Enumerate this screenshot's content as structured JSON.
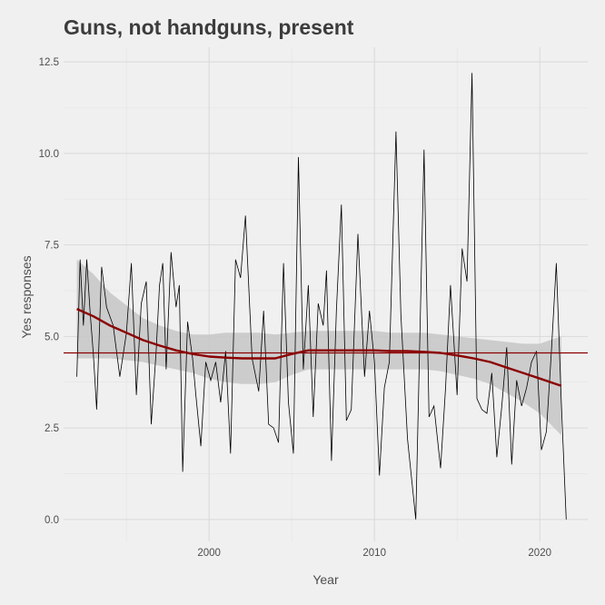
{
  "chart_data": {
    "type": "line",
    "title": "Guns, not handguns, present",
    "xlabel": "Year",
    "ylabel": "Yes responses",
    "xlim": [
      1991.2,
      2022.9
    ],
    "ylim": [
      -0.6,
      12.9
    ],
    "x_ticks": [
      2000,
      2010,
      2020
    ],
    "x_tick_labels": [
      "2000",
      "2010",
      "2020"
    ],
    "y_ticks": [
      0,
      2.5,
      5,
      7.5,
      10,
      12.5
    ],
    "y_tick_labels": [
      "0.0",
      "2.5",
      "5.0",
      "7.5",
      "10.0",
      "12.5"
    ],
    "grid": true,
    "legend": "none",
    "colors": {
      "background": "#f0f0f0",
      "grid": "#d9d9d9",
      "raw_line": "#000000",
      "smooth": "#8b0000",
      "band": "#c8c8c8",
      "mean_line": "#8b0000"
    },
    "mean_line_y": 4.55,
    "series": [
      {
        "x": [
          1992.0,
          1992.2,
          1992.4,
          1992.6,
          1992.8,
          1993.0,
          1993.2,
          1993.5,
          1993.8,
          1994.2,
          1994.6,
          1995.0,
          1995.3,
          1995.6,
          1995.9,
          1996.2,
          1996.5,
          1996.8,
          1997.0,
          1997.2,
          1997.4,
          1997.7,
          1998.0,
          1998.2,
          1998.4,
          1998.7,
          1999.0,
          1999.2,
          1999.5,
          1999.8,
          2000.1,
          2000.4,
          2000.7,
          2001.0,
          2001.3,
          2001.6,
          2001.9,
          2002.2,
          2002.6,
          2003.0,
          2003.3,
          2003.6,
          2003.9,
          2004.2,
          2004.5,
          2004.8,
          2005.1,
          2005.4,
          2005.7,
          2006.0,
          2006.3,
          2006.6,
          2006.9,
          2007.1,
          2007.4,
          2007.7,
          2008.0,
          2008.3,
          2008.6,
          2009.0,
          2009.4,
          2009.7,
          2010.0,
          2010.3,
          2010.6,
          2010.9,
          2011.3,
          2011.6,
          2012.0,
          2012.5,
          2013.0,
          2013.3,
          2013.6,
          2014.0,
          2014.3,
          2014.6,
          2015.0,
          2015.3,
          2015.6,
          2015.9,
          2016.2,
          2016.5,
          2016.8,
          2017.1,
          2017.4,
          2017.7,
          2018.0,
          2018.3,
          2018.6,
          2018.9,
          2019.2,
          2019.5,
          2019.8,
          2020.1,
          2020.4,
          2020.7,
          2021.0,
          2021.3,
          2021.6
        ],
        "values": [
          3.9,
          7.1,
          5.3,
          7.1,
          5.7,
          4.5,
          3.0,
          6.9,
          5.8,
          5.3,
          3.9,
          5.1,
          7.0,
          3.4,
          5.9,
          6.5,
          2.6,
          4.6,
          6.4,
          7.0,
          4.1,
          7.3,
          5.8,
          6.4,
          1.3,
          5.4,
          4.4,
          3.4,
          2.0,
          4.3,
          3.8,
          4.3,
          3.2,
          4.6,
          1.8,
          7.1,
          6.6,
          8.3,
          4.4,
          3.5,
          5.7,
          2.6,
          2.5,
          2.1,
          7.0,
          3.2,
          1.8,
          9.9,
          4.1,
          6.4,
          2.8,
          5.9,
          5.3,
          6.8,
          1.6,
          5.7,
          8.6,
          2.7,
          3.0,
          7.8,
          3.9,
          5.7,
          4.3,
          1.2,
          3.6,
          4.3,
          10.6,
          5.6,
          2.2,
          0.0,
          10.1,
          2.8,
          3.1,
          1.4,
          3.6,
          6.4,
          3.4,
          7.4,
          6.5,
          12.2,
          3.3,
          3.0,
          2.9,
          4.0,
          1.7,
          3.1,
          4.7,
          1.5,
          3.8,
          3.1,
          3.6,
          4.3,
          4.6,
          1.9,
          2.4,
          4.6,
          7.0,
          3.2,
          0.0
        ]
      },
      {
        "type": "smooth",
        "x": [
          1992.0,
          1993.0,
          1994.0,
          1995.0,
          1996.0,
          1997.0,
          1998.0,
          1999.0,
          2000.0,
          2001.0,
          2002.0,
          2003.0,
          2004.0,
          2005.0,
          2006.0,
          2007.0,
          2008.0,
          2009.0,
          2010.0,
          2011.0,
          2012.0,
          2013.0,
          2014.0,
          2015.0,
          2016.0,
          2017.0,
          2018.0,
          2019.0,
          2020.0,
          2021.3
        ],
        "values": [
          5.75,
          5.55,
          5.3,
          5.1,
          4.9,
          4.75,
          4.62,
          4.52,
          4.45,
          4.42,
          4.4,
          4.4,
          4.4,
          4.52,
          4.62,
          4.62,
          4.62,
          4.62,
          4.62,
          4.6,
          4.6,
          4.58,
          4.55,
          4.48,
          4.4,
          4.3,
          4.15,
          4.0,
          3.85,
          3.65
        ],
        "lower": [
          4.4,
          4.4,
          4.4,
          4.35,
          4.3,
          4.2,
          4.1,
          4.0,
          3.85,
          3.75,
          3.7,
          3.7,
          3.75,
          3.95,
          4.1,
          4.1,
          4.1,
          4.1,
          4.1,
          4.1,
          4.1,
          4.1,
          4.05,
          3.95,
          3.85,
          3.7,
          3.45,
          3.2,
          2.9,
          2.3
        ],
        "upper": [
          7.1,
          6.7,
          6.2,
          5.85,
          5.5,
          5.3,
          5.15,
          5.05,
          5.05,
          5.1,
          5.1,
          5.1,
          5.05,
          5.1,
          5.15,
          5.15,
          5.15,
          5.15,
          5.15,
          5.1,
          5.1,
          5.1,
          5.05,
          5.0,
          4.95,
          4.9,
          4.85,
          4.8,
          4.8,
          5.0
        ]
      }
    ]
  }
}
